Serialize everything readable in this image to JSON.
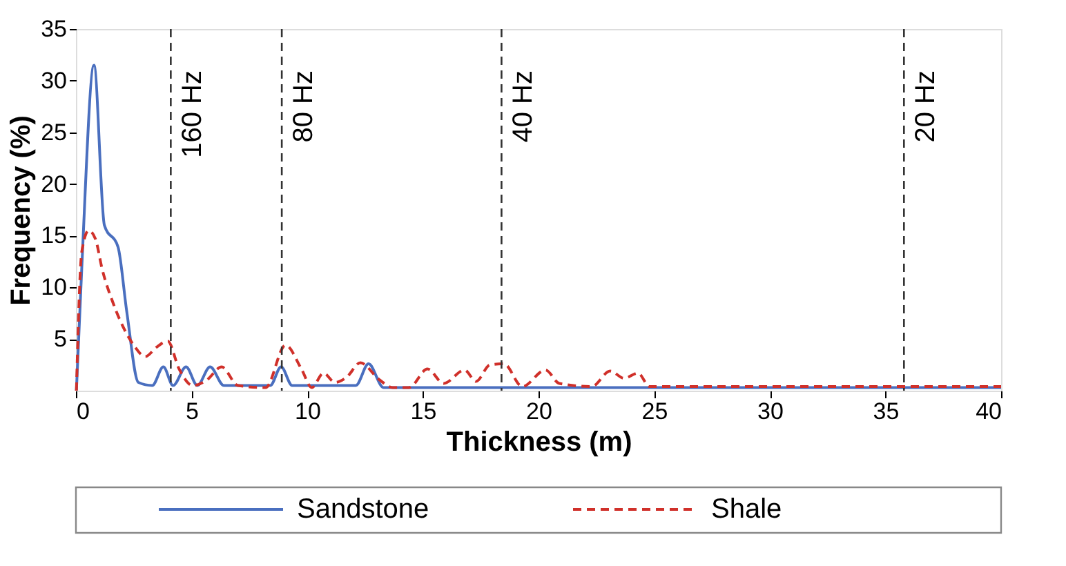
{
  "chart_data": {
    "type": "line",
    "xlabel": "Thickness (m)",
    "ylabel": "Frequency (%)",
    "xlim": [
      0,
      40
    ],
    "xticks": [
      0,
      5,
      10,
      15,
      20,
      25,
      30,
      35,
      40
    ],
    "ylim": [
      0,
      35
    ],
    "yticks": [
      5,
      10,
      15,
      20,
      25,
      30,
      35
    ],
    "grid": false,
    "legend": "bottom",
    "marker": "none",
    "series": [
      {
        "name": "Sandstone",
        "color": "#4a6fbf",
        "line_style": "solid",
        "x": [
          0.02,
          0.25,
          0.78,
          1.23,
          1.82,
          2.2,
          2.7,
          3.3,
          3.78,
          4.2,
          4.76,
          5.25,
          5.8,
          6.4,
          8.4,
          8.87,
          9.35,
          12.1,
          12.65,
          13.3,
          20,
          30,
          40
        ],
        "values": [
          0,
          11.8,
          31.5,
          16,
          13.9,
          7.6,
          0.8,
          0.5,
          2.3,
          0.5,
          2.3,
          0.5,
          2.3,
          0.5,
          0.5,
          2.3,
          0.5,
          0.5,
          2.6,
          0.3,
          0.3,
          0.3,
          0.3
        ]
      },
      {
        "name": "Shale",
        "color": "#d0302a",
        "line_style": "dashed",
        "x": [
          0.02,
          0.25,
          0.55,
          0.84,
          1.13,
          1.62,
          2.1,
          2.5,
          3.0,
          3.48,
          3.97,
          4.46,
          5.05,
          5.64,
          6.3,
          7.0,
          8.2,
          9.06,
          9.75,
          10.2,
          10.7,
          11.2,
          11.7,
          12.3,
          13.1,
          13.7,
          14.4,
          15.2,
          15.9,
          16.8,
          17.3,
          17.9,
          18.5,
          19.3,
          20.3,
          20.9,
          22.3,
          23.1,
          23.7,
          24.3,
          24.8,
          30,
          40
        ],
        "values": [
          0,
          13.4,
          15.5,
          14.7,
          11.8,
          8.4,
          5.9,
          4.4,
          3.3,
          4.2,
          4.8,
          2.1,
          0.5,
          1.0,
          2.3,
          0.5,
          0.3,
          4.4,
          2.1,
          0.3,
          1.7,
          0.8,
          1.3,
          2.7,
          1.1,
          0.3,
          0.3,
          2.1,
          0.7,
          2.0,
          0.9,
          2.5,
          2.6,
          0.4,
          2.0,
          0.7,
          0.4,
          1.9,
          1.2,
          1.7,
          0.4,
          0.4,
          0.4
        ]
      }
    ],
    "ref_lines": [
      {
        "axis": "x",
        "value": 4.1,
        "label": "160 Hz",
        "color": "#333333",
        "line_style": "dashed"
      },
      {
        "axis": "x",
        "value": 8.9,
        "label": "80 Hz",
        "color": "#333333",
        "line_style": "dashed"
      },
      {
        "axis": "x",
        "value": 18.4,
        "label": "40 Hz",
        "color": "#333333",
        "line_style": "dashed"
      },
      {
        "axis": "x",
        "value": 35.8,
        "label": "20 Hz",
        "color": "#333333",
        "line_style": "dashed"
      }
    ]
  }
}
